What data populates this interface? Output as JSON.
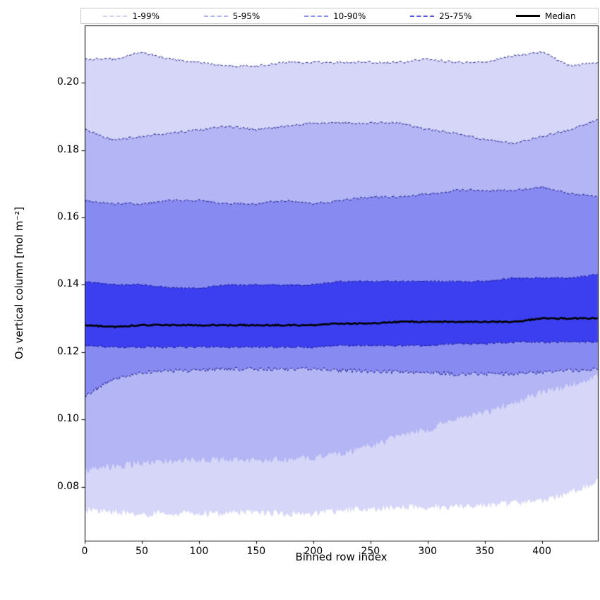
{
  "chart_data": {
    "type": "area",
    "title": "",
    "xlabel": "Binned row index",
    "ylabel": "O₃ vertical column [mol m⁻²]",
    "xlim": [
      0,
      449
    ],
    "ylim": [
      0.064,
      0.217
    ],
    "xticks": [
      0,
      50,
      100,
      150,
      200,
      250,
      300,
      350,
      400
    ],
    "yticks": [
      0.08,
      0.1,
      0.12,
      0.14,
      0.16,
      0.18,
      0.2
    ],
    "grid": false,
    "legend_position": "top",
    "x": [
      0,
      25,
      50,
      75,
      100,
      125,
      150,
      175,
      200,
      225,
      250,
      275,
      300,
      325,
      350,
      375,
      400,
      425,
      449
    ],
    "bands": [
      {
        "name": "1-99%",
        "lower": [
          0.073,
          0.0725,
          0.072,
          0.072,
          0.072,
          0.072,
          0.0725,
          0.072,
          0.072,
          0.073,
          0.0735,
          0.074,
          0.074,
          0.074,
          0.0745,
          0.075,
          0.076,
          0.078,
          0.082
        ],
        "upper": [
          0.207,
          0.207,
          0.209,
          0.207,
          0.206,
          0.205,
          0.205,
          0.206,
          0.206,
          0.206,
          0.206,
          0.206,
          0.207,
          0.206,
          0.206,
          0.208,
          0.209,
          0.205,
          0.206
        ],
        "fill": "#d6d7f8",
        "edge": "#12128a",
        "stroke_top": true,
        "stroke_bottom": false,
        "legend_line": "#d3d3f1"
      },
      {
        "name": "5-95%",
        "lower": [
          0.085,
          0.086,
          0.087,
          0.0875,
          0.088,
          0.088,
          0.088,
          0.088,
          0.0885,
          0.09,
          0.092,
          0.095,
          0.097,
          0.1,
          0.102,
          0.105,
          0.108,
          0.11,
          0.113
        ],
        "upper": [
          0.186,
          0.183,
          0.184,
          0.185,
          0.186,
          0.187,
          0.186,
          0.187,
          0.188,
          0.188,
          0.188,
          0.188,
          0.186,
          0.185,
          0.183,
          0.182,
          0.184,
          0.186,
          0.189
        ],
        "fill": "#b3b5f4",
        "edge": "#12128a",
        "stroke_top": true,
        "stroke_bottom": false,
        "legend_line": "#b3b5ee"
      },
      {
        "name": "10-90%",
        "lower": [
          0.107,
          0.112,
          0.114,
          0.1145,
          0.1145,
          0.115,
          0.115,
          0.115,
          0.115,
          0.1145,
          0.1145,
          0.114,
          0.114,
          0.1135,
          0.1135,
          0.1135,
          0.114,
          0.1145,
          0.115
        ],
        "upper": [
          0.165,
          0.164,
          0.164,
          0.165,
          0.165,
          0.164,
          0.164,
          0.165,
          0.164,
          0.165,
          0.166,
          0.166,
          0.167,
          0.168,
          0.168,
          0.168,
          0.169,
          0.167,
          0.166
        ],
        "fill": "#878af0",
        "edge": "#12128a",
        "stroke_top": true,
        "stroke_bottom": true,
        "legend_line": "#8b8eec"
      },
      {
        "name": "25-75%",
        "lower": [
          0.122,
          0.1215,
          0.1215,
          0.1215,
          0.1215,
          0.1215,
          0.1215,
          0.1215,
          0.1215,
          0.122,
          0.122,
          0.122,
          0.122,
          0.1225,
          0.1225,
          0.123,
          0.123,
          0.123,
          0.123
        ],
        "upper": [
          0.141,
          0.14,
          0.14,
          0.139,
          0.139,
          0.14,
          0.14,
          0.14,
          0.14,
          0.141,
          0.141,
          0.141,
          0.141,
          0.141,
          0.141,
          0.142,
          0.142,
          0.142,
          0.143
        ],
        "fill": "#3b3ff0",
        "edge": "#12128a",
        "stroke_top": true,
        "stroke_bottom": true,
        "legend_line": "#5559e2"
      }
    ],
    "median": {
      "name": "Median",
      "values": [
        0.128,
        0.1275,
        0.128,
        0.128,
        0.128,
        0.128,
        0.128,
        0.128,
        0.128,
        0.1285,
        0.1285,
        0.129,
        0.129,
        0.129,
        0.129,
        0.129,
        0.13,
        0.13,
        0.13
      ],
      "color": "#000000"
    }
  }
}
